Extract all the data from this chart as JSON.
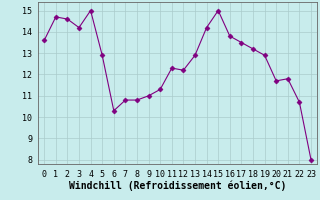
{
  "x": [
    0,
    1,
    2,
    3,
    4,
    5,
    6,
    7,
    8,
    9,
    10,
    11,
    12,
    13,
    14,
    15,
    16,
    17,
    18,
    19,
    20,
    21,
    22,
    23
  ],
  "y": [
    13.6,
    14.7,
    14.6,
    14.2,
    15.0,
    12.9,
    10.3,
    10.8,
    10.8,
    11.0,
    11.3,
    12.3,
    12.2,
    12.9,
    14.2,
    15.0,
    13.8,
    13.5,
    13.2,
    12.9,
    11.7,
    11.8,
    10.7,
    8.0
  ],
  "line_color": "#800080",
  "marker": "D",
  "marker_size": 2.5,
  "bg_color": "#c8ecec",
  "grid_color": "#aacccc",
  "xlabel": "Windchill (Refroidissement éolien,°C)",
  "xlim": [
    -0.5,
    23.5
  ],
  "ylim": [
    7.8,
    15.4
  ],
  "yticks": [
    8,
    9,
    10,
    11,
    12,
    13,
    14,
    15
  ],
  "xticks": [
    0,
    1,
    2,
    3,
    4,
    5,
    6,
    7,
    8,
    9,
    10,
    11,
    12,
    13,
    14,
    15,
    16,
    17,
    18,
    19,
    20,
    21,
    22,
    23
  ],
  "tick_fontsize": 6,
  "xlabel_fontsize": 7
}
